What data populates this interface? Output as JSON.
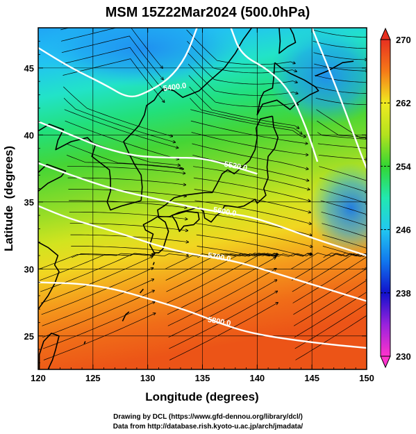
{
  "title": "MSM 15Z22Mar2024 (500.0hPa)",
  "xlabel": "Longitude (degrees)",
  "ylabel": "Latitude  (degrees)",
  "x_ticks": [
    "120",
    "125",
    "130",
    "135",
    "140",
    "145",
    "150"
  ],
  "y_ticks": [
    "25",
    "30",
    "35",
    "40",
    "45"
  ],
  "colorbar_ticks": [
    "270",
    "262",
    "254",
    "246",
    "238",
    "230"
  ],
  "contour_labels": [
    "5400.0",
    "5520.0",
    "5600.0",
    "5700.0",
    "5800.0"
  ],
  "footer_line1": "Drawing by DCL (https://www.gfd-dennou.org/library/dcl/)",
  "footer_line2": "Data from http://database.rish.kyoto-u.ac.jp/arch/jmadata/",
  "chart_data": {
    "type": "heatmap",
    "variable": "temperature (K) with geopotential height contours and wind streamlines",
    "xlim": [
      120,
      150
    ],
    "ylim": [
      22.5,
      48
    ],
    "colorbar_range": [
      230,
      270
    ],
    "colorbar_stops": [
      {
        "value": 230,
        "color": "#ff33cc"
      },
      {
        "value": 234,
        "color": "#9922dd"
      },
      {
        "value": 238,
        "color": "#1111cc"
      },
      {
        "value": 242,
        "color": "#1177ee"
      },
      {
        "value": 246,
        "color": "#22c8f0"
      },
      {
        "value": 250,
        "color": "#22e8b0"
      },
      {
        "value": 254,
        "color": "#33d633"
      },
      {
        "value": 258,
        "color": "#b4e21e"
      },
      {
        "value": 262,
        "color": "#f0ea20"
      },
      {
        "value": 266,
        "color": "#f57a18"
      },
      {
        "value": 270,
        "color": "#e83020"
      }
    ],
    "contours": [
      {
        "value": 5400,
        "label": "5400.0",
        "points": [
          [
            120,
            46.5
          ],
          [
            123,
            45.0
          ],
          [
            126,
            43.8
          ],
          [
            128.3,
            42.7
          ],
          [
            130,
            43.2
          ],
          [
            132,
            44.2
          ],
          [
            133.5,
            45.8
          ],
          [
            134.5,
            48.0
          ]
        ]
      },
      {
        "value": 5520,
        "label": "5520.0",
        "points": [
          [
            120,
            41.0
          ],
          [
            123,
            40.0
          ],
          [
            126,
            39.0
          ],
          [
            129,
            38.4
          ],
          [
            132,
            38.3
          ],
          [
            135,
            38.3
          ],
          [
            138,
            37.6
          ],
          [
            140,
            37.1
          ]
        ]
      },
      {
        "value": 5600,
        "label": "5600.0",
        "points": [
          [
            120,
            37.9
          ],
          [
            123,
            37.0
          ],
          [
            127,
            35.9
          ],
          [
            131,
            35.2
          ],
          [
            134,
            34.6
          ],
          [
            137,
            34.2
          ],
          [
            140,
            33.8
          ],
          [
            145,
            32.3
          ],
          [
            150,
            31.0
          ]
        ]
      },
      {
        "value": 5700,
        "label": "5700.0",
        "points": [
          [
            120,
            34.7
          ],
          [
            123,
            33.7
          ],
          [
            127,
            32.8
          ],
          [
            131,
            31.7
          ],
          [
            134,
            31.1
          ],
          [
            138,
            30.6
          ],
          [
            142,
            29.6
          ],
          [
            146,
            28.6
          ],
          [
            150,
            27.6
          ]
        ]
      },
      {
        "value": 5800,
        "label": "5800.0",
        "points": [
          [
            120,
            29.0
          ],
          [
            124,
            28.9
          ],
          [
            127,
            28.5
          ],
          [
            130,
            27.8
          ],
          [
            134,
            26.8
          ],
          [
            137,
            25.8
          ],
          [
            140,
            25.1
          ],
          [
            145,
            24.5
          ],
          [
            150,
            24.1
          ]
        ]
      },
      {
        "value": 5400,
        "label": "",
        "points": [
          [
            137.6,
            48.0
          ],
          [
            138.5,
            46.0
          ],
          [
            141.0,
            44.9
          ],
          [
            143.0,
            43.3
          ],
          [
            144.5,
            40.5
          ],
          [
            145.5,
            38.0
          ]
        ]
      },
      {
        "value": 5400,
        "label": "",
        "points": [
          [
            145.0,
            48.0
          ],
          [
            147.5,
            43.0
          ],
          [
            149.5,
            38.5
          ],
          [
            150.0,
            37.5
          ]
        ]
      }
    ],
    "label_positions": [
      {
        "text": "5400.0",
        "at": [
          132.5,
          43.4
        ]
      },
      {
        "text": "5520.0",
        "at": [
          138.0,
          37.5
        ]
      },
      {
        "text": "5600.0",
        "at": [
          137.0,
          34.1
        ]
      },
      {
        "text": "5700.0",
        "at": [
          136.5,
          30.7
        ]
      },
      {
        "text": "5800.0",
        "at": [
          136.5,
          25.9
        ]
      }
    ],
    "coast_segments": [
      [
        [
          141.6,
          45.4
        ],
        [
          142.2,
          45.0
        ],
        [
          143.0,
          44.6
        ],
        [
          144.3,
          44.1
        ],
        [
          145.3,
          43.6
        ],
        [
          145.6,
          43.3
        ],
        [
          144.8,
          43.0
        ],
        [
          143.5,
          42.3
        ],
        [
          143.0,
          41.9
        ],
        [
          141.8,
          42.6
        ],
        [
          140.5,
          42.3
        ],
        [
          140.0,
          41.5
        ],
        [
          140.3,
          42.7
        ],
        [
          140.6,
          43.2
        ],
        [
          141.4,
          43.5
        ],
        [
          141.5,
          44.2
        ],
        [
          141.6,
          45.4
        ]
      ],
      [
        [
          141.4,
          41.4
        ],
        [
          141.5,
          40.6
        ],
        [
          141.9,
          39.8
        ],
        [
          141.6,
          39.0
        ],
        [
          141.0,
          38.4
        ],
        [
          140.9,
          37.6
        ],
        [
          141.0,
          36.8
        ],
        [
          140.6,
          36.0
        ],
        [
          140.8,
          35.5
        ],
        [
          140.0,
          34.9
        ],
        [
          139.8,
          35.2
        ],
        [
          139.2,
          34.9
        ],
        [
          138.8,
          34.7
        ],
        [
          138.2,
          34.6
        ],
        [
          137.4,
          34.7
        ],
        [
          137.0,
          34.7
        ],
        [
          136.8,
          34.3
        ],
        [
          136.3,
          34.0
        ],
        [
          135.8,
          33.5
        ],
        [
          135.2,
          33.8
        ],
        [
          135.1,
          34.3
        ],
        [
          134.6,
          34.6
        ],
        [
          133.8,
          34.4
        ],
        [
          132.8,
          34.2
        ],
        [
          132.0,
          33.9
        ],
        [
          131.0,
          33.9
        ],
        [
          130.9,
          34.4
        ],
        [
          131.5,
          34.7
        ],
        [
          132.4,
          35.3
        ],
        [
          133.3,
          35.5
        ],
        [
          134.3,
          35.6
        ],
        [
          135.2,
          35.7
        ],
        [
          135.9,
          35.7
        ],
        [
          136.3,
          36.3
        ],
        [
          136.8,
          37.1
        ],
        [
          137.3,
          37.4
        ],
        [
          137.9,
          37.1
        ],
        [
          138.6,
          37.6
        ],
        [
          139.3,
          38.1
        ],
        [
          139.8,
          38.9
        ],
        [
          140.0,
          39.8
        ],
        [
          139.9,
          40.5
        ],
        [
          140.3,
          41.2
        ],
        [
          141.4,
          41.4
        ]
      ],
      [
        [
          132.2,
          34.0
        ],
        [
          132.6,
          33.5
        ],
        [
          132.9,
          32.8
        ],
        [
          133.3,
          33.2
        ],
        [
          134.2,
          33.3
        ],
        [
          134.7,
          33.7
        ],
        [
          134.6,
          34.2
        ],
        [
          133.5,
          34.3
        ],
        [
          132.2,
          34.0
        ]
      ],
      [
        [
          130.9,
          33.9
        ],
        [
          131.6,
          33.5
        ],
        [
          131.9,
          32.8
        ],
        [
          131.4,
          31.5
        ],
        [
          131.0,
          31.2
        ],
        [
          130.6,
          31.2
        ],
        [
          130.2,
          31.8
        ],
        [
          130.5,
          32.6
        ],
        [
          129.8,
          32.9
        ],
        [
          129.6,
          33.3
        ],
        [
          130.3,
          33.6
        ],
        [
          130.9,
          33.9
        ]
      ],
      [
        [
          129.4,
          35.1
        ],
        [
          129.5,
          36.1
        ],
        [
          129.4,
          37.0
        ],
        [
          128.8,
          37.8
        ],
        [
          128.3,
          38.6
        ],
        [
          127.8,
          39.5
        ],
        [
          128.4,
          40.0
        ],
        [
          129.2,
          40.7
        ],
        [
          129.7,
          41.5
        ],
        [
          129.9,
          42.2
        ],
        [
          130.6,
          42.6
        ],
        [
          130.9,
          43.0
        ],
        [
          131.5,
          43.5
        ],
        [
          132.4,
          43.3
        ],
        [
          133.2,
          42.8
        ],
        [
          134.7,
          43.3
        ],
        [
          135.6,
          44.0
        ],
        [
          137.0,
          45.0
        ],
        [
          138.0,
          46.1
        ],
        [
          138.7,
          47.1
        ],
        [
          139.5,
          48.0
        ]
      ],
      [
        [
          129.4,
          35.1
        ],
        [
          128.5,
          34.9
        ],
        [
          127.6,
          34.7
        ],
        [
          126.6,
          34.4
        ],
        [
          126.3,
          35.0
        ],
        [
          126.6,
          35.8
        ],
        [
          126.6,
          36.7
        ],
        [
          126.5,
          37.4
        ],
        [
          125.7,
          37.9
        ],
        [
          124.9,
          38.4
        ],
        [
          125.2,
          39.2
        ],
        [
          124.5,
          39.8
        ],
        [
          123.0,
          39.5
        ],
        [
          121.6,
          38.9
        ],
        [
          121.8,
          39.6
        ],
        [
          122.3,
          40.4
        ],
        [
          121.0,
          40.8
        ],
        [
          120.0,
          40.3
        ]
      ],
      [
        [
          120.0,
          37.2
        ],
        [
          120.8,
          37.8
        ],
        [
          122.5,
          37.3
        ],
        [
          122.1,
          36.9
        ],
        [
          120.9,
          36.4
        ],
        [
          120.3,
          36.0
        ],
        [
          120.0,
          35.8
        ]
      ],
      [
        [
          120.0,
          32.0
        ],
        [
          120.9,
          31.6
        ],
        [
          121.8,
          31.0
        ],
        [
          121.5,
          30.3
        ],
        [
          121.9,
          29.8
        ],
        [
          121.5,
          28.9
        ],
        [
          120.9,
          28.0
        ],
        [
          120.0,
          27.0
        ]
      ],
      [
        [
          120.1,
          22.5
        ],
        [
          120.1,
          23.6
        ],
        [
          120.5,
          24.6
        ],
        [
          121.2,
          25.2
        ],
        [
          121.9,
          25.0
        ],
        [
          121.6,
          24.0
        ],
        [
          121.3,
          23.2
        ],
        [
          120.9,
          22.5
        ]
      ],
      [
        [
          142.0,
          48.0
        ],
        [
          142.1,
          47.0
        ],
        [
          142.0,
          46.1
        ],
        [
          142.8,
          46.6
        ],
        [
          143.5,
          46.9
        ],
        [
          143.3,
          47.5
        ],
        [
          143.0,
          48.0
        ]
      ],
      [
        [
          145.3,
          44.4
        ],
        [
          146.5,
          44.8
        ],
        [
          147.8,
          45.4
        ],
        [
          148.8,
          45.5
        ]
      ],
      [
        [
          124.2,
          24.4
        ],
        [
          124.3,
          24.6
        ]
      ],
      [
        [
          127.7,
          26.1
        ],
        [
          128.0,
          26.6
        ],
        [
          128.3,
          26.8
        ]
      ],
      [
        [
          129.3,
          28.2
        ],
        [
          129.6,
          28.5
        ]
      ],
      [
        [
          130.5,
          30.3
        ],
        [
          130.6,
          30.5
        ]
      ]
    ]
  }
}
